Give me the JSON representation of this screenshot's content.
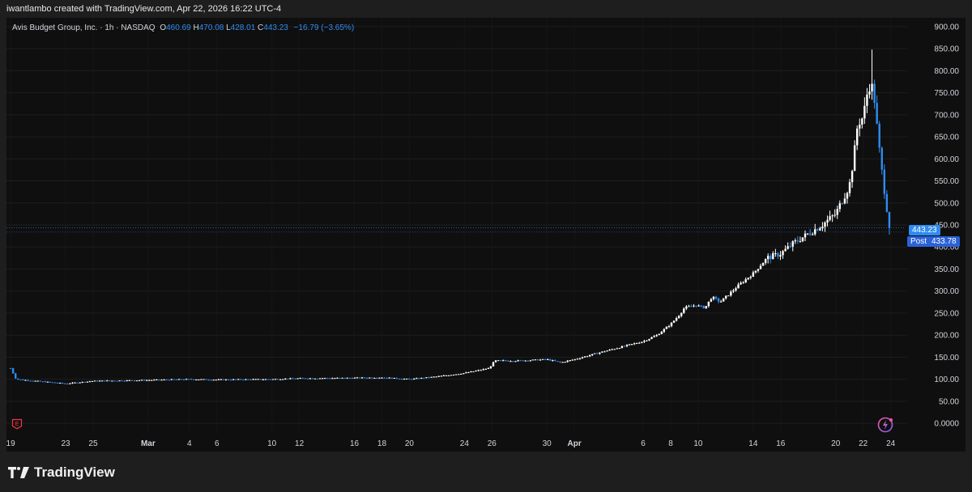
{
  "credit": "iwantlambo created with TradingView.com, Apr 22, 2026 16:22 UTC-4",
  "brand": {
    "name": "TradingView",
    "logo_icon": "tradingview-logo-icon"
  },
  "legend": {
    "symbol": "Avis Budget Group, Inc. · 1h · NASDAQ",
    "open_label": "O",
    "open": "460.69",
    "high_label": "H",
    "high": "470.08",
    "low_label": "L",
    "low": "428.01",
    "close_label": "C",
    "close": "443.23",
    "change": "−16.79 (−3.65%)"
  },
  "price_tags": {
    "last": "443.23",
    "post_label": "Post",
    "post": "433.78"
  },
  "earnings_icon": {
    "name": "earnings-icon",
    "glyph": "E"
  },
  "colors": {
    "up": "#ffffff",
    "down": "#2f8cf0",
    "background": "#0f0f0f",
    "grid": "#1f1f1f",
    "axis_text": "#d1d4dc",
    "accent": "#2f8cf0"
  },
  "chart_data": {
    "type": "candlestick",
    "title": "Avis Budget Group, Inc. · 1h · NASDAQ",
    "ylim": [
      -20,
      920
    ],
    "yticks": [
      0,
      50,
      100,
      150,
      200,
      250,
      300,
      350,
      400,
      450,
      500,
      550,
      600,
      650,
      700,
      750,
      800,
      850,
      900
    ],
    "ytick_labels": [
      "0.0000",
      "50.00",
      "100.00",
      "150.00",
      "200.00",
      "250.00",
      "300.00",
      "350.00",
      "400.00",
      "450.00",
      "500.00",
      "550.00",
      "600.00",
      "650.00",
      "700.00",
      "750.00",
      "800.00",
      "850.00",
      "900.00"
    ],
    "xticks": [
      {
        "label": "19",
        "day": 0
      },
      {
        "label": "23",
        "day": 4
      },
      {
        "label": "25",
        "day": 6
      },
      {
        "label": "Mar",
        "day": 10
      },
      {
        "label": "4",
        "day": 13
      },
      {
        "label": "6",
        "day": 15
      },
      {
        "label": "10",
        "day": 19
      },
      {
        "label": "12",
        "day": 21
      },
      {
        "label": "16",
        "day": 25
      },
      {
        "label": "18",
        "day": 27
      },
      {
        "label": "20",
        "day": 29
      },
      {
        "label": "24",
        "day": 33
      },
      {
        "label": "26",
        "day": 35
      },
      {
        "label": "30",
        "day": 39
      },
      {
        "label": "Apr",
        "day": 41
      },
      {
        "label": "6",
        "day": 46
      },
      {
        "label": "8",
        "day": 48
      },
      {
        "label": "10",
        "day": 50
      },
      {
        "label": "14",
        "day": 54
      },
      {
        "label": "16",
        "day": 56
      },
      {
        "label": "20",
        "day": 60
      },
      {
        "label": "22",
        "day": 62
      },
      {
        "label": "24",
        "day": 64
      }
    ],
    "xlim_days": [
      -0.3,
      65.2
    ],
    "last_price": 443.23,
    "post_price": 433.78,
    "anchors": [
      [
        0,
        125
      ],
      [
        0.4,
        100
      ],
      [
        4,
        90
      ],
      [
        6,
        96
      ],
      [
        10,
        98
      ],
      [
        13,
        100
      ],
      [
        15,
        99
      ],
      [
        19,
        100
      ],
      [
        21,
        102
      ],
      [
        25,
        103
      ],
      [
        27,
        104
      ],
      [
        29,
        100
      ],
      [
        31,
        106
      ],
      [
        33,
        114
      ],
      [
        34,
        120
      ],
      [
        34.8,
        125
      ],
      [
        35.2,
        142
      ],
      [
        37,
        142
      ],
      [
        39,
        145
      ],
      [
        40,
        138
      ],
      [
        41,
        145
      ],
      [
        43,
        162
      ],
      [
        45,
        178
      ],
      [
        46,
        186
      ],
      [
        47,
        200
      ],
      [
        48,
        225
      ],
      [
        48.6,
        245
      ],
      [
        49,
        262
      ],
      [
        49.8,
        268
      ],
      [
        50.5,
        262
      ],
      [
        51,
        287
      ],
      [
        51.6,
        275
      ],
      [
        53,
        315
      ],
      [
        54,
        340
      ],
      [
        55,
        375
      ],
      [
        56,
        385
      ],
      [
        57,
        410
      ],
      [
        58,
        430
      ],
      [
        59,
        450
      ],
      [
        60,
        475
      ],
      [
        61,
        540
      ],
      [
        61.3,
        600
      ],
      [
        61.6,
        680
      ],
      [
        62,
        695
      ],
      [
        62.3,
        750
      ],
      [
        62.55,
        775
      ],
      [
        62.8,
        740
      ],
      [
        63.1,
        640
      ],
      [
        63.4,
        560
      ],
      [
        63.65,
        505
      ],
      [
        63.9,
        443
      ]
    ]
  }
}
